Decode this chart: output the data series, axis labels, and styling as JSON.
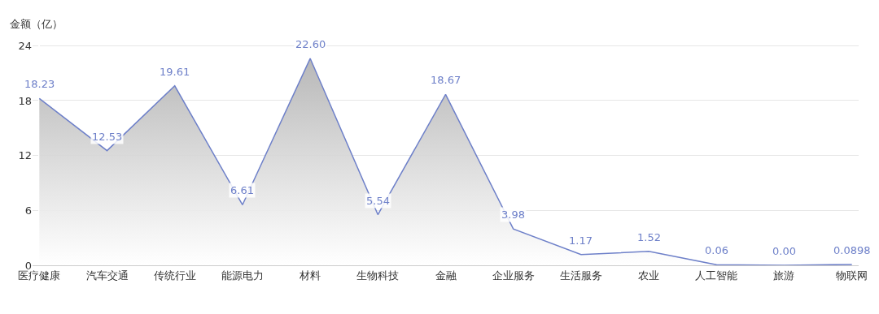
{
  "chart_data": {
    "type": "area",
    "ylabel": "金额（亿）",
    "categories": [
      "医疗健康",
      "汽车交通",
      "传统行业",
      "能源电力",
      "材料",
      "生物科技",
      "金融",
      "企业服务",
      "生活服务",
      "农业",
      "人工智能",
      "旅游",
      "物联网"
    ],
    "series": [
      {
        "color": "#6e80c9",
        "values": [
          18.23,
          12.53,
          19.61,
          6.61,
          22.6,
          5.54,
          18.67,
          3.98,
          1.17,
          1.52,
          0.06,
          0.0,
          0.0898
        ],
        "value_labels": [
          "18.23",
          "12.53",
          "19.61",
          "6.61",
          "22.60",
          "5.54",
          "18.67",
          "3.98",
          "1.17",
          "1.52",
          "0.06",
          "0.00",
          "0.0898"
        ]
      }
    ],
    "ylim": [
      0,
      25
    ],
    "yticks": [
      0,
      6,
      12,
      18,
      24
    ],
    "grid": "y",
    "legend": false,
    "marker": "none",
    "line_style": "solid"
  }
}
